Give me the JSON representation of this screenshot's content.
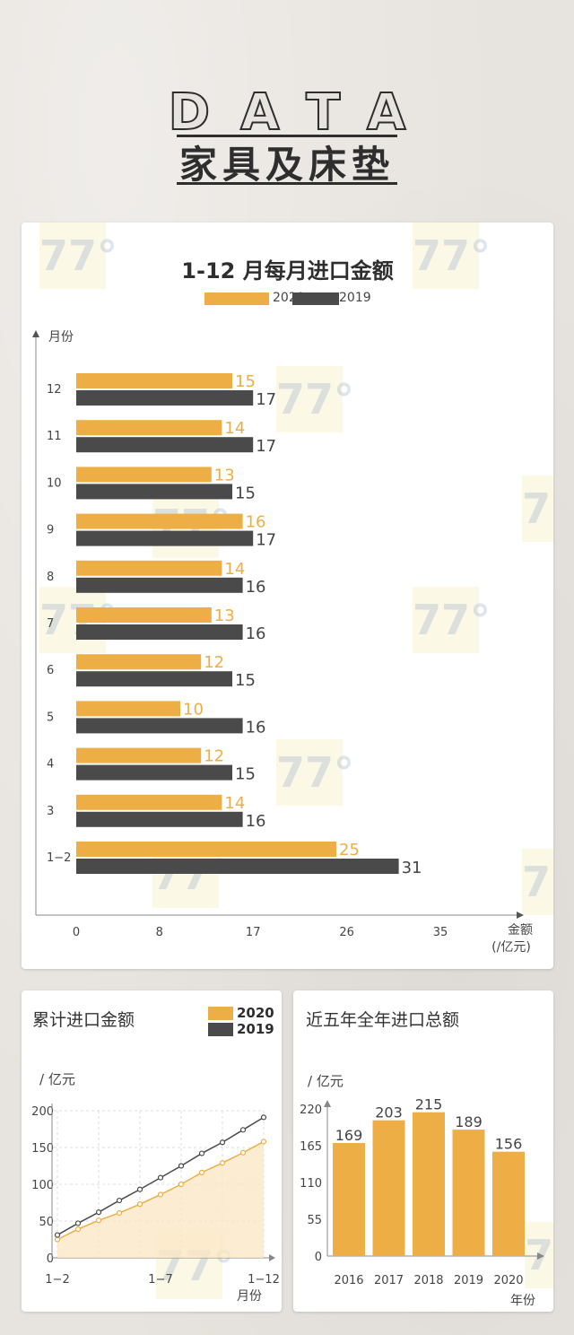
{
  "header": {
    "data_word": "DATA",
    "title": "家具及床垫"
  },
  "colors": {
    "y2020": "#eeae46",
    "y2019": "#4a4a4a",
    "axis": "#888888",
    "bg": "#e7e3de"
  },
  "watermark": "77°",
  "chart_data": [
    {
      "type": "bar",
      "title": "1-12 月每月进口金额",
      "ylabel": "月份",
      "xlabel_line1": "金额",
      "xlabel_line2": "(/亿元)",
      "xticks": [
        "0",
        "8",
        "17",
        "26",
        "35"
      ],
      "xlim": [
        0,
        35
      ],
      "categories": [
        "12",
        "11",
        "10",
        "9",
        "8",
        "7",
        "6",
        "5",
        "4",
        "3",
        "1−2"
      ],
      "series": [
        {
          "name": "2020",
          "values": [
            15,
            14,
            13,
            16,
            14,
            13,
            12,
            10,
            12,
            14,
            25
          ]
        },
        {
          "name": "2019",
          "values": [
            17,
            17,
            15,
            17,
            16,
            16,
            15,
            16,
            15,
            16,
            31
          ]
        }
      ],
      "legend": "top"
    },
    {
      "type": "line",
      "title": "累计进口金额",
      "ylabel": "/ 亿元",
      "xlabel": "月份",
      "xticks": [
        "1−2",
        "1−7",
        "1−12"
      ],
      "yticks": [
        "0",
        "50",
        "100",
        "150",
        "200"
      ],
      "ylim": [
        0,
        200
      ],
      "x": [
        "1−2",
        "3",
        "4",
        "5",
        "6",
        "7",
        "8",
        "9",
        "10",
        "11",
        "12"
      ],
      "series": [
        {
          "name": "2020",
          "values": [
            25,
            39,
            51,
            61,
            73,
            86,
            100,
            116,
            129,
            143,
            158
          ]
        },
        {
          "name": "2019",
          "values": [
            31,
            47,
            62,
            78,
            93,
            109,
            125,
            142,
            157,
            174,
            191
          ]
        }
      ],
      "legend": "top-right",
      "grid": true
    },
    {
      "type": "bar",
      "title": "近五年全年进口总额",
      "ylabel": "/ 亿元",
      "xlabel": "年份",
      "yticks": [
        "0",
        "55",
        "110",
        "165",
        "220"
      ],
      "ylim": [
        0,
        220
      ],
      "categories": [
        "2016",
        "2017",
        "2018",
        "2019",
        "2020"
      ],
      "values": [
        169,
        203,
        215,
        189,
        156
      ]
    }
  ]
}
